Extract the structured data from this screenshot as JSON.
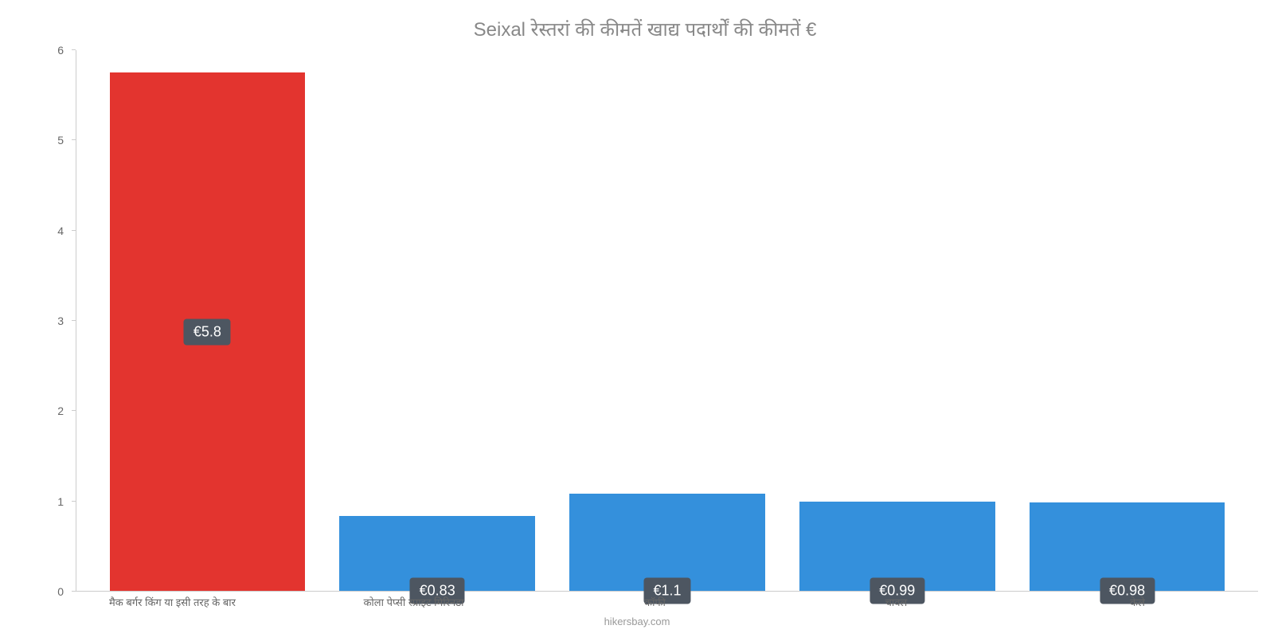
{
  "chart": {
    "type": "bar",
    "title": "Seixal रेस्तरां    की    कीमतें    खाद्य    पदार्थों    की    कीमतें    €",
    "title_color": "#888888",
    "title_fontsize": 24,
    "background_color": "#ffffff",
    "ylim": [
      0,
      6
    ],
    "ytick_step": 1,
    "yticks": [
      "0",
      "1",
      "2",
      "3",
      "4",
      "5",
      "6"
    ],
    "axis_color": "#cccccc",
    "label_color": "#666666",
    "label_fontsize": 13,
    "bar_width_pct": 85,
    "value_label_bg": "#4d5661",
    "value_label_color": "#ffffff",
    "value_label_fontsize": 18,
    "categories": [
      "मैक बर्गर किंग या इसी तरह के बार",
      "कोला पेप्सी स्प्राइट मिरिनडा",
      "कॉफी",
      "चावल",
      "केले"
    ],
    "values": [
      5.75,
      0.83,
      1.08,
      0.99,
      0.98
    ],
    "display_values": [
      "€5.8",
      "€0.83",
      "€1.1",
      "€0.99",
      "€0.98"
    ],
    "bar_colors": [
      "#e3342f",
      "#3490dc",
      "#3490dc",
      "#3490dc",
      "#3490dc"
    ],
    "label_positions": [
      "center",
      "below",
      "below",
      "below",
      "below"
    ],
    "attribution": "hikersbay.com",
    "attribution_color": "#999999"
  }
}
